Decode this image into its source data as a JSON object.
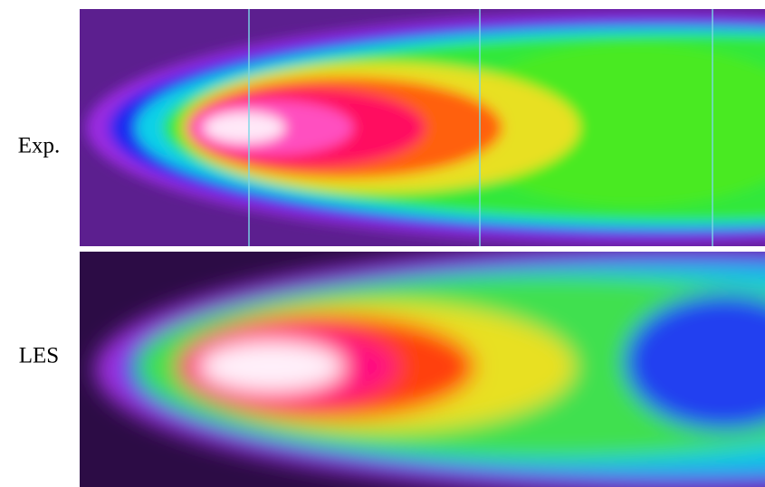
{
  "panels": [
    {
      "label": "Exp."
    },
    {
      "label": "LES"
    }
  ]
}
